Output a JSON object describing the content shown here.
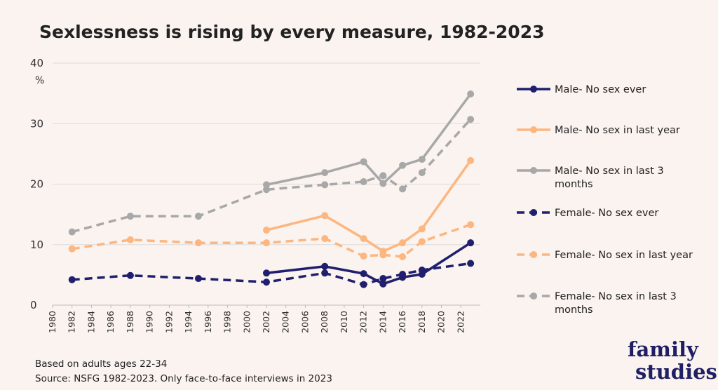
{
  "chart_data": {
    "type": "line",
    "title": "Sexlessness is rising by every measure, 1982-2023",
    "ylabel": "%",
    "xlim": [
      1980,
      2024
    ],
    "ylim": [
      0,
      40
    ],
    "yticks": [
      0,
      10,
      20,
      30,
      40
    ],
    "xticks": [
      "1980",
      "1982",
      "1984",
      "1986",
      "1988",
      "1990",
      "1992",
      "1994",
      "1996",
      "1998",
      "2000",
      "2002",
      "2004",
      "2006",
      "2008",
      "2010",
      "2012",
      "2014",
      "2016",
      "2018",
      "2020",
      "2022"
    ],
    "grid": "horizontal",
    "legend_position": "right",
    "series": [
      {
        "name": "Male-  No sex ever",
        "color": "#1f1f6e",
        "dashed": false,
        "x": [
          2002,
          2008,
          2012,
          2014,
          2016,
          2018,
          2023
        ],
        "y": [
          5.3,
          6.4,
          5.2,
          3.5,
          4.6,
          5.1,
          10.3
        ]
      },
      {
        "name": "Male-  No sex in last year",
        "color": "#fdb67f",
        "dashed": false,
        "x": [
          2002,
          2008,
          2012,
          2014,
          2016,
          2018,
          2023
        ],
        "y": [
          12.4,
          14.8,
          11.0,
          8.9,
          10.3,
          12.6,
          23.9
        ]
      },
      {
        "name": "Male-  No sex in last 3 months",
        "color": "#a8a8a8",
        "dashed": false,
        "x": [
          2002,
          2008,
          2012,
          2014,
          2016,
          2018,
          2023
        ],
        "y": [
          19.9,
          21.9,
          23.7,
          20.1,
          23.1,
          24.1,
          34.9
        ]
      },
      {
        "name": "Female-  No sex ever",
        "color": "#1f1f6e",
        "dashed": true,
        "x": [
          1982,
          1988,
          1995,
          2002,
          2008,
          2012,
          2014,
          2016,
          2018,
          2023
        ],
        "y": [
          4.2,
          4.9,
          4.4,
          3.8,
          5.3,
          3.4,
          4.4,
          5.1,
          5.8,
          6.9
        ]
      },
      {
        "name": "Female-  No sex in last year",
        "color": "#fdb67f",
        "dashed": true,
        "x": [
          1982,
          1988,
          1995,
          2002,
          2008,
          2012,
          2014,
          2016,
          2018,
          2023
        ],
        "y": [
          9.3,
          10.8,
          10.3,
          10.3,
          11.0,
          8.1,
          8.3,
          8.0,
          10.5,
          13.3
        ]
      },
      {
        "name": "Female-  No sex in last 3 months",
        "color": "#a8a8a8",
        "dashed": true,
        "x": [
          1982,
          1988,
          1995,
          2002,
          2008,
          2012,
          2014,
          2016,
          2018,
          2023
        ],
        "y": [
          12.1,
          14.7,
          14.7,
          19.1,
          19.9,
          20.4,
          21.4,
          19.2,
          21.9,
          30.7
        ]
      }
    ],
    "legend_lines": [
      [
        "Male-  No sex ever"
      ],
      [
        "Male-  No sex in last year"
      ],
      [
        "Male-  No sex in last 3",
        "months"
      ],
      [
        "Female-  No sex ever"
      ],
      [
        "Female-  No sex in last year"
      ],
      [
        "Female-  No sex in last 3",
        "months"
      ]
    ],
    "notes": [
      "Based on adults ages 22-34",
      "Source: NSFG 1982-2023. Only face-to-face interviews in 2023"
    ]
  },
  "logo": {
    "line1": "family",
    "line2": "studies"
  }
}
